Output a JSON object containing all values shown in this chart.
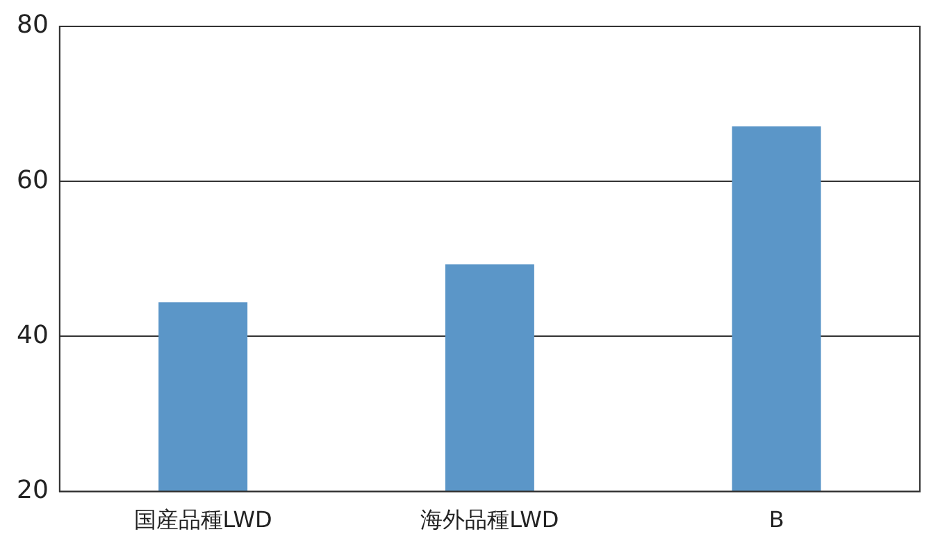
{
  "chart_data": {
    "type": "bar",
    "categories": [
      "国産品種LWD",
      "海外品種LWD",
      "B"
    ],
    "values": [
      44.4,
      49.3,
      67.1
    ],
    "color": "#5b96c8",
    "ylim": [
      20,
      80
    ],
    "yticks": [
      20,
      40,
      60,
      80
    ],
    "grid": "y",
    "legend": false
  }
}
